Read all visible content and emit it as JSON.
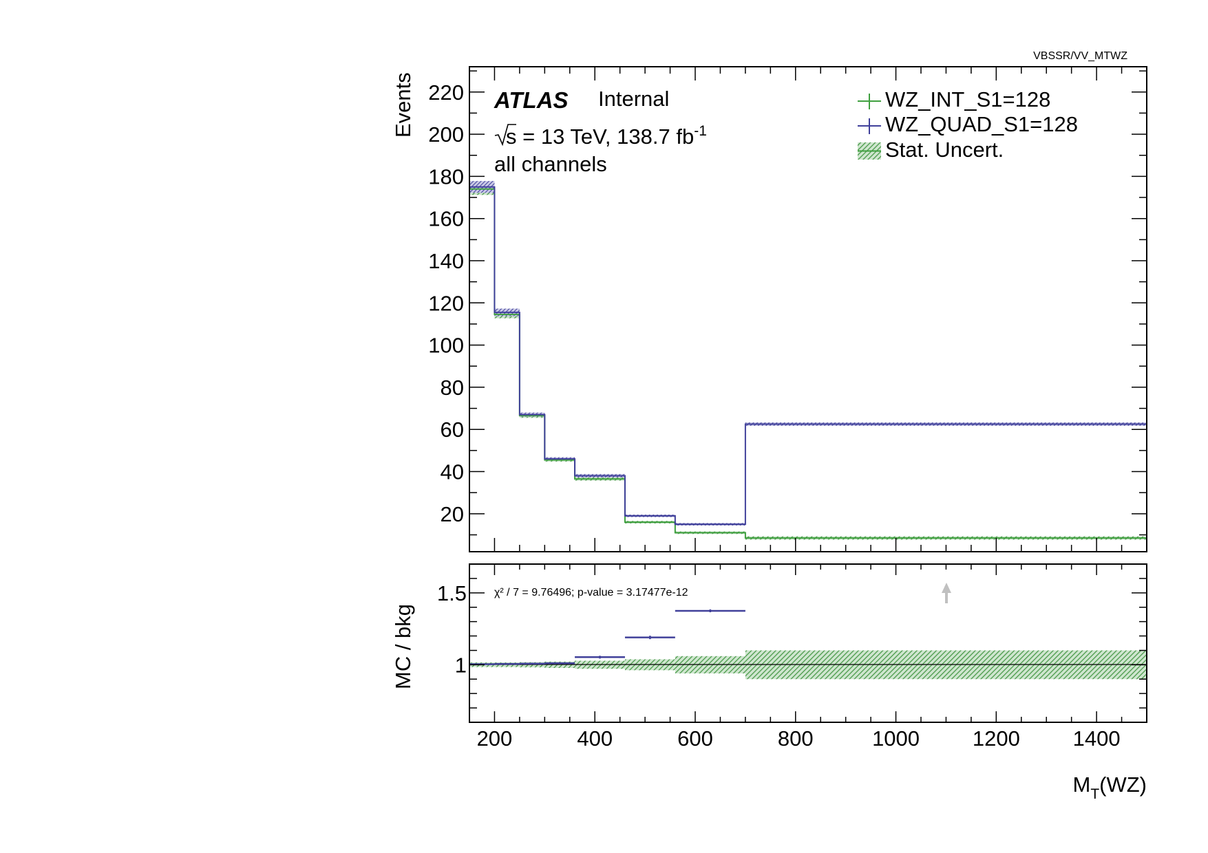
{
  "header": {
    "path_label": "VBSSR/VV_MTWZ"
  },
  "annotations": {
    "experiment": "ATLAS",
    "status": "Internal",
    "energy_prefix": "s = 13 TeV, 138.7 fb",
    "energy_sup": "-1",
    "region": "all channels",
    "ratio_stats": "χ² / 7 = 9.76496; p-value = 3.17477e-12"
  },
  "colors": {
    "int": "#3f9f3f",
    "quad": "#40409a",
    "band": "#4a9a4a",
    "frame": "#000000",
    "arrow": "#c0c0c0"
  },
  "chart_data": [
    {
      "type": "line",
      "panel": "main",
      "ylabel": "Events",
      "xlim": [
        150,
        1500
      ],
      "ylim": [
        2,
        232
      ],
      "y_ticks": [
        20,
        40,
        60,
        80,
        100,
        120,
        140,
        160,
        180,
        200,
        220
      ],
      "y_tick_labels": [
        "20",
        "40",
        "60",
        "80",
        "100",
        "120",
        "140",
        "160",
        "180",
        "200",
        "220"
      ],
      "bin_edges": [
        150,
        200,
        250,
        300,
        360,
        460,
        560,
        700,
        1500
      ],
      "legend_position": "top-right",
      "series": [
        {
          "name": "WZ_INT_S1=128",
          "color": "#3f9f3f",
          "values": [
            174,
            114.5,
            66.5,
            45.5,
            36.5,
            16,
            11,
            8.5
          ]
        },
        {
          "name": "WZ_QUAD_S1=128",
          "color": "#40409a",
          "values": [
            175,
            115.5,
            67,
            46,
            38,
            19,
            15,
            62.5
          ]
        }
      ],
      "uncertainty": {
        "name": "Stat. Uncert.",
        "errors": [
          2.8,
          1.8,
          1.0,
          0.8,
          0.8,
          0.6,
          0.6,
          0.8
        ]
      }
    },
    {
      "type": "scatter",
      "panel": "ratio",
      "ylabel": "MC / bkg",
      "xlabel": "M_T(WZ)",
      "xlim": [
        150,
        1500
      ],
      "ylim": [
        0.6,
        1.7
      ],
      "y_ticks": [
        1,
        1.5
      ],
      "y_tick_labels": [
        "1",
        "1.5"
      ],
      "x_ticks": [
        200,
        400,
        600,
        800,
        1000,
        1200,
        1400
      ],
      "x_tick_labels": [
        "200",
        "400",
        "600",
        "800",
        "1000",
        "1200",
        "1400"
      ],
      "bin_edges": [
        150,
        200,
        250,
        300,
        360,
        460,
        560,
        700,
        1500
      ],
      "ratio_values": [
        1.004,
        1.006,
        1.008,
        1.011,
        1.053,
        1.19,
        1.375,
        7.35
      ],
      "ratio_errors": [
        0.005,
        0.004,
        0.006,
        0.006,
        0.01,
        0.012,
        0.01,
        0
      ],
      "band_halfwidth": [
        0.016,
        0.016,
        0.018,
        0.022,
        0.028,
        0.038,
        0.06,
        0.1
      ],
      "offscale_arrow_x": 1100
    }
  ]
}
